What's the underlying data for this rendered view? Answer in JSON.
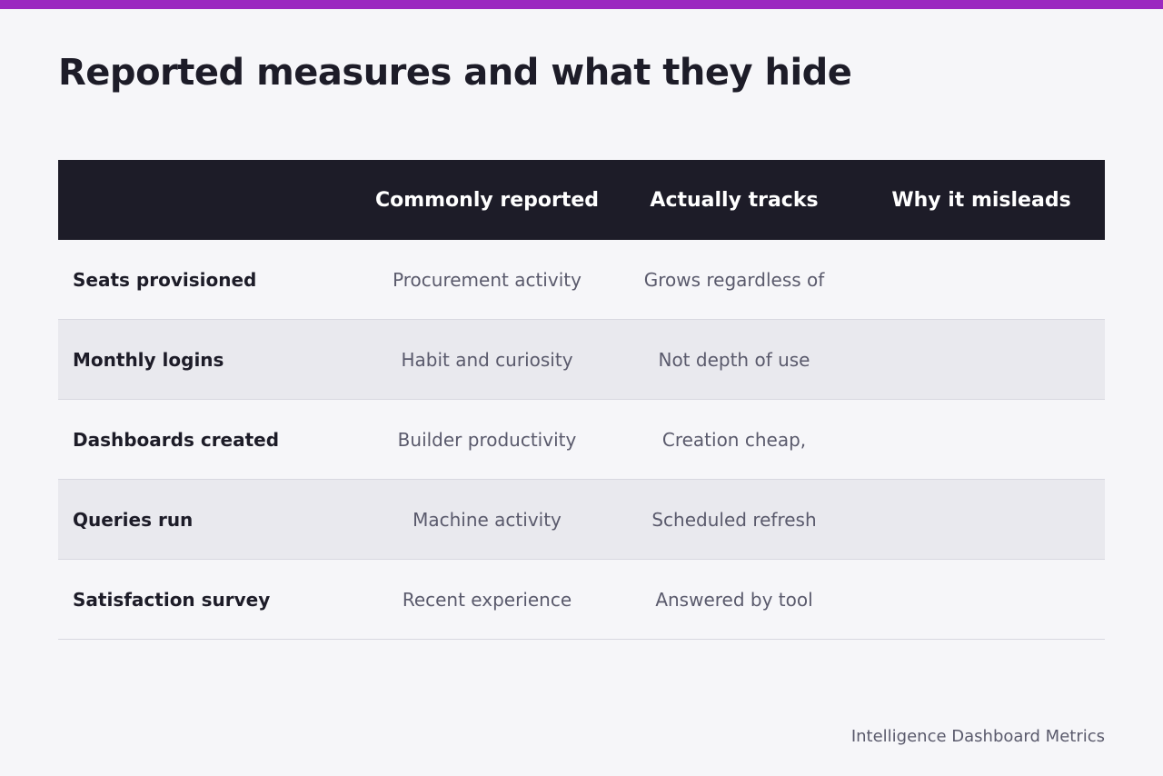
{
  "title": "Reported measures and what they hide",
  "accent_color": "#9b27c0",
  "header_background": "#1d1c28",
  "table": {
    "headers": [
      "",
      "Commonly reported",
      "Actually tracks",
      "Why it misleads"
    ],
    "rows": [
      {
        "metric": "Seats provisioned",
        "reported": "Procurement activity",
        "tracks": "Grows regardless of",
        "misleads": ""
      },
      {
        "metric": "Monthly logins",
        "reported": "Habit and curiosity",
        "tracks": "Not depth of use",
        "misleads": ""
      },
      {
        "metric": "Dashboards created",
        "reported": "Builder productivity",
        "tracks": "Creation cheap,",
        "misleads": ""
      },
      {
        "metric": "Queries run",
        "reported": "Machine activity",
        "tracks": "Scheduled refresh",
        "misleads": ""
      },
      {
        "metric": "Satisfaction survey",
        "reported": "Recent experience",
        "tracks": "Answered by tool",
        "misleads": ""
      }
    ]
  },
  "footer": "Intelligence Dashboard Metrics"
}
